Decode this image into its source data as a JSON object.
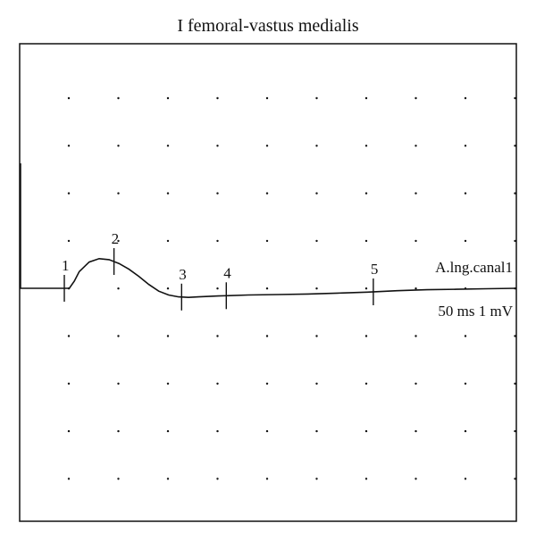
{
  "title": "I femoral-vastus medialis",
  "chart_data": {
    "type": "line",
    "title": "I femoral-vastus medialis",
    "xlabel": "",
    "ylabel": "",
    "grid": true,
    "channel_label": "A.lng.canal1",
    "scale_label": "50 ms  1 mV",
    "time_per_division_ms": 50,
    "amplitude_per_division_mV": 1,
    "divisions_x": 10,
    "divisions_y": 10,
    "x_unit": "ms",
    "y_unit": "mV",
    "xlim": [
      0,
      500
    ],
    "ylim": [
      -5,
      5
    ],
    "series": [
      {
        "x": [
          0,
          5,
          10,
          20,
          30,
          40,
          50,
          55,
          60,
          70,
          80,
          90,
          100,
          110,
          120,
          130,
          140,
          150,
          160,
          170,
          180,
          200,
          230,
          260,
          290,
          320,
          350,
          380,
          410,
          440,
          470,
          500
        ],
        "y": [
          0,
          0,
          0,
          0,
          0,
          0,
          0,
          0.15,
          0.35,
          0.55,
          0.62,
          0.6,
          0.52,
          0.4,
          0.25,
          0.08,
          -0.06,
          -0.14,
          -0.18,
          -0.19,
          -0.18,
          -0.16,
          -0.14,
          -0.13,
          -0.12,
          -0.1,
          -0.08,
          -0.05,
          -0.03,
          -0.02,
          -0.01,
          0
        ]
      }
    ],
    "markers": [
      {
        "label": "1",
        "x": 45
      },
      {
        "label": "2",
        "x": 95
      },
      {
        "label": "3",
        "x": 163
      },
      {
        "label": "4",
        "x": 208
      },
      {
        "label": "5",
        "x": 356
      }
    ]
  }
}
